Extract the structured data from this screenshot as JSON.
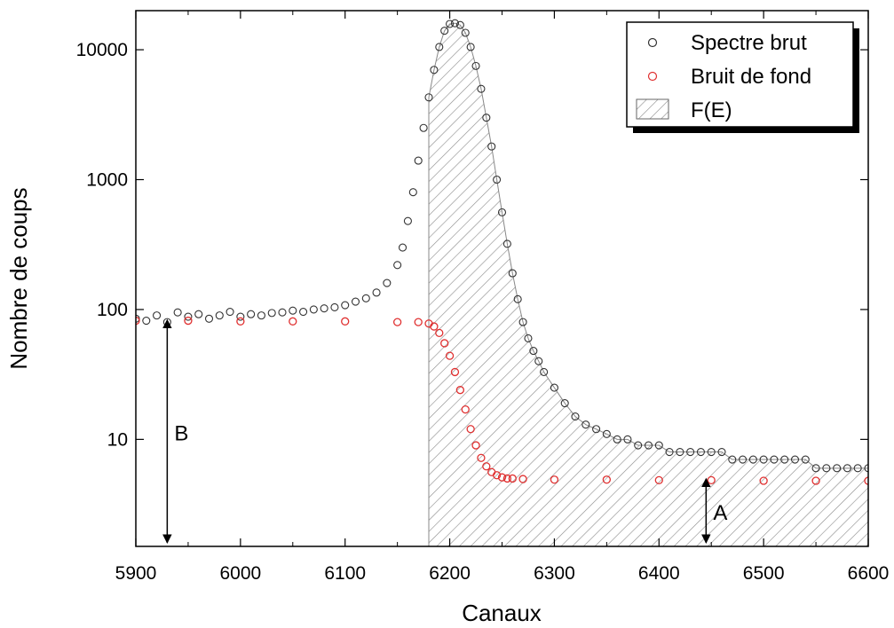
{
  "chart_data": {
    "type": "scatter",
    "title": "",
    "xlabel": "Canaux",
    "ylabel": "Nombre de coups",
    "xlim": [
      5900,
      6600
    ],
    "ylim": [
      1.5,
      20000
    ],
    "y_scale": "log",
    "grid": false,
    "legend_position": "top-right",
    "x_ticks": [
      5900,
      6000,
      6100,
      6200,
      6300,
      6400,
      6500,
      6600
    ],
    "x_tick_labels": [
      "5900",
      "6000",
      "6100",
      "6200",
      "6300",
      "6400",
      "6500",
      "6600"
    ],
    "y_ticks": [
      10,
      100,
      1000,
      10000
    ],
    "y_tick_labels": [
      "10",
      "100",
      "1000",
      "10000"
    ],
    "series": [
      {
        "name": "Spectre brut",
        "marker": "open-circle",
        "color": "#333333",
        "x": [
          5900,
          5910,
          5920,
          5930,
          5940,
          5950,
          5960,
          5970,
          5980,
          5990,
          6000,
          6010,
          6020,
          6030,
          6040,
          6050,
          6060,
          6070,
          6080,
          6090,
          6100,
          6110,
          6120,
          6130,
          6140,
          6150,
          6155,
          6160,
          6165,
          6170,
          6175,
          6180,
          6185,
          6190,
          6195,
          6200,
          6205,
          6210,
          6215,
          6220,
          6225,
          6230,
          6235,
          6240,
          6245,
          6250,
          6255,
          6260,
          6265,
          6270,
          6275,
          6280,
          6285,
          6290,
          6300,
          6310,
          6320,
          6330,
          6340,
          6350,
          6360,
          6370,
          6380,
          6390,
          6400,
          6410,
          6420,
          6430,
          6440,
          6450,
          6460,
          6470,
          6480,
          6490,
          6500,
          6510,
          6520,
          6530,
          6540,
          6550,
          6560,
          6570,
          6580,
          6590,
          6600
        ],
        "y": [
          85,
          82,
          90,
          80,
          95,
          88,
          92,
          85,
          90,
          96,
          88,
          92,
          90,
          94,
          95,
          98,
          96,
          100,
          102,
          104,
          108,
          115,
          122,
          135,
          160,
          220,
          300,
          480,
          800,
          1400,
          2500,
          4300,
          7000,
          10500,
          14000,
          15800,
          16000,
          15500,
          13500,
          10500,
          7500,
          5000,
          3000,
          1800,
          1000,
          560,
          320,
          190,
          120,
          80,
          60,
          48,
          40,
          33,
          25,
          19,
          15,
          13,
          12,
          11,
          10,
          10,
          9,
          9,
          9,
          8,
          8,
          8,
          8,
          8,
          8,
          7,
          7,
          7,
          7,
          7,
          7,
          7,
          7,
          6,
          6,
          6,
          6,
          6,
          6
        ]
      },
      {
        "name": "Bruit de fond",
        "marker": "open-circle",
        "color": "#e03030",
        "x": [
          5900,
          5950,
          6000,
          6050,
          6100,
          6150,
          6170,
          6180,
          6185,
          6190,
          6195,
          6200,
          6205,
          6210,
          6215,
          6220,
          6225,
          6230,
          6235,
          6240,
          6245,
          6250,
          6255,
          6260,
          6270,
          6300,
          6350,
          6400,
          6450,
          6500,
          6550,
          6600
        ],
        "y": [
          82,
          82,
          81,
          81,
          81,
          80,
          80,
          78,
          74,
          66,
          55,
          44,
          33,
          24,
          17,
          12,
          9,
          7.2,
          6.2,
          5.6,
          5.3,
          5.1,
          5.0,
          5.0,
          4.95,
          4.9,
          4.9,
          4.85,
          4.85,
          4.8,
          4.8,
          4.8
        ]
      }
    ],
    "legend": [
      {
        "label": "Spectre brut",
        "kind": "open-circle",
        "color": "#333333"
      },
      {
        "label": "Bruit de fond",
        "kind": "open-circle",
        "color": "#e03030"
      },
      {
        "label": "F(E)",
        "kind": "hatched-box",
        "color": "#777777"
      }
    ],
    "annotations": [
      {
        "text": "B",
        "kind": "double-arrow",
        "x": 5930,
        "y_from": 80,
        "y_to": 1.6
      },
      {
        "text": "A",
        "kind": "double-arrow",
        "x": 6445,
        "y_from": 4.8,
        "y_to": 1.6
      }
    ],
    "hatched_region": {
      "label": "F(E)",
      "x_start": 6180,
      "x_end": 6600
    }
  }
}
